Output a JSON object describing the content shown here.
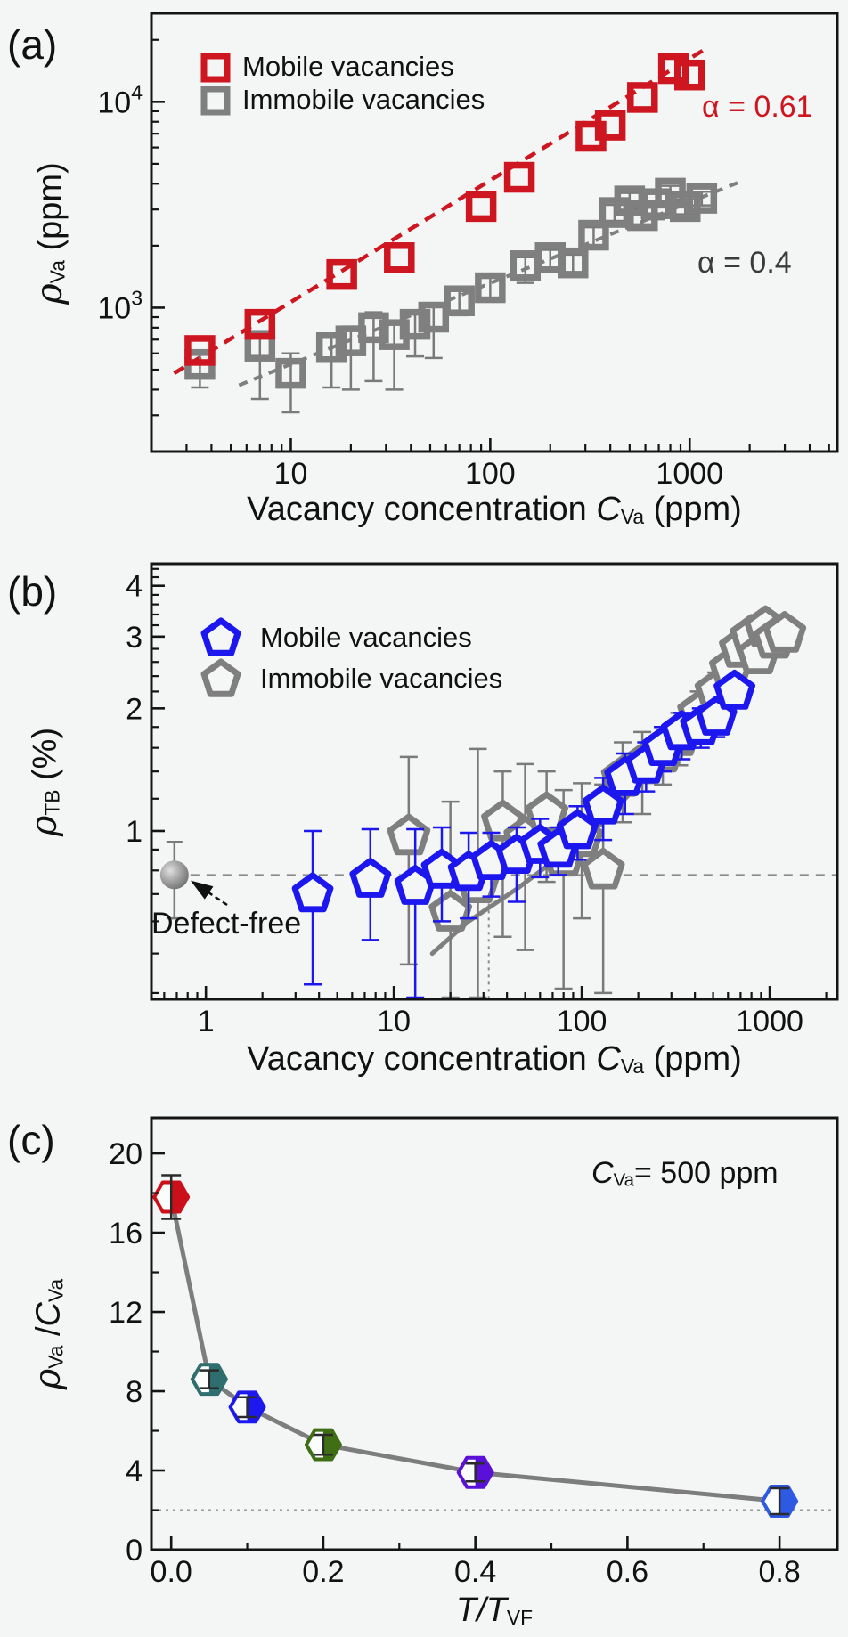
{
  "background": "#f3f6f5",
  "chart_data": [
    {
      "panel": "(a)",
      "type": "scatter",
      "legend_position": "top-left-inside",
      "legend": [
        {
          "label": "Mobile vacancies",
          "color": "#ce1620",
          "marker": "square"
        },
        {
          "label": "Immobile vacancies",
          "color": "#7f7f7f",
          "marker": "square"
        }
      ],
      "annotations": [
        {
          "text": "α = 0.61",
          "color": "#ce1620"
        },
        {
          "text": "α = 0.4",
          "color": "#3b3b3b"
        }
      ],
      "x_axis": {
        "scale": "log",
        "label_parts": [
          {
            "t": "Vacancy concentration "
          },
          {
            "t": "C",
            "s": "it"
          },
          {
            "t": "Va",
            "s": "sub"
          },
          {
            "t": " (ppm)"
          }
        ],
        "range": [
          2,
          5500
        ],
        "major_ticks": [
          10,
          100,
          1000
        ],
        "tick_labels": [
          "10",
          "100",
          "1000"
        ],
        "minor_ticks": [
          3,
          4,
          5,
          6,
          7,
          8,
          9,
          20,
          30,
          40,
          50,
          60,
          70,
          80,
          90,
          200,
          300,
          400,
          500,
          600,
          700,
          800,
          900,
          2000,
          3000,
          4000,
          5000
        ]
      },
      "y_axis": {
        "scale": "log",
        "label_parts": [
          {
            "t": "ρ",
            "s": "gi"
          },
          {
            "t": "Va",
            "s": "sub"
          },
          {
            "t": " (ppm)"
          }
        ],
        "range": [
          200,
          26900
        ],
        "major_ticks": [
          1000,
          10000
        ],
        "tick_labels": [
          {
            "b": "10",
            "s": "3"
          },
          {
            "b": "10",
            "s": "4"
          }
        ],
        "minor_ticks": [
          300,
          400,
          500,
          600,
          700,
          800,
          900,
          2000,
          3000,
          4000,
          5000,
          6000,
          7000,
          8000,
          9000,
          20000
        ]
      },
      "series": [
        {
          "name": "Immobile vacancies",
          "marker": "square",
          "color": "#7f7f7f",
          "points": [
            [
              3.5,
              530,
              120,
              60
            ],
            [
              7,
              650,
              290,
              80
            ],
            [
              10,
              480,
              170,
              120
            ],
            [
              16,
              640,
              230,
              90
            ],
            [
              20,
              690,
              290,
              120
            ],
            [
              26,
              800,
              360,
              150
            ],
            [
              33,
              740,
              340,
              110
            ],
            [
              42,
              830,
              250,
              130
            ],
            [
              52,
              900,
              330,
              140
            ],
            [
              70,
              1080,
              160,
              160
            ],
            [
              100,
              1250,
              160,
              160
            ],
            [
              150,
              1600,
              280,
              160
            ],
            [
              200,
              1750,
              200,
              160
            ],
            [
              260,
              1650,
              160,
              160
            ],
            [
              330,
              2250,
              260,
              210
            ],
            [
              420,
              2900,
              260,
              260
            ],
            [
              500,
              3300,
              310,
              310
            ],
            [
              580,
              2800,
              260,
              260
            ],
            [
              680,
              3200,
              510,
              410
            ],
            [
              800,
              3600,
              310,
              310
            ],
            [
              950,
              3100,
              260,
              260
            ],
            [
              1150,
              3400,
              260,
              260
            ]
          ]
        },
        {
          "name": "Mobile vacancies",
          "marker": "square",
          "color": "#ce1620",
          "points": [
            [
              3.5,
              620
            ],
            [
              7,
              830
            ],
            [
              18,
              1450
            ],
            [
              35,
              1750
            ],
            [
              90,
              3100
            ],
            [
              140,
              4300
            ],
            [
              320,
              6800
            ],
            [
              400,
              7700
            ],
            [
              580,
              10500
            ],
            [
              830,
              14500
            ],
            [
              1000,
              13500
            ]
          ]
        }
      ],
      "fit_lines": [
        {
          "color": "#7f7f7f",
          "dash": "10 8",
          "width": 4,
          "from": [
            5.5,
            420
          ],
          "to": [
            1800,
            4100
          ],
          "alpha": "0.4"
        },
        {
          "color": "#ce1620",
          "dash": "13 9",
          "width": 4.5,
          "from": [
            2.6,
            480
          ],
          "to": [
            1250,
            18500
          ],
          "alpha": "0.61"
        }
      ]
    },
    {
      "panel": "(b)",
      "type": "scatter",
      "legend": [
        {
          "label": "Mobile vacancies",
          "color": "#1c17ee",
          "marker": "pentagon"
        },
        {
          "label": "Immobile vacancies",
          "color": "#7f7f7f",
          "marker": "pentagon"
        }
      ],
      "x_axis": {
        "scale": "log",
        "label_parts": [
          {
            "t": "Vacancy concentration "
          },
          {
            "t": "C",
            "s": "it"
          },
          {
            "t": "Va",
            "s": "sub"
          },
          {
            "t": " (ppm)"
          }
        ],
        "range": [
          0.513,
          2290
        ],
        "major_ticks": [
          1,
          10,
          100,
          1000
        ],
        "tick_labels": [
          "1",
          "10",
          "100",
          "1000"
        ],
        "minor_ticks": [
          0.6,
          0.7,
          0.8,
          0.9,
          2,
          3,
          4,
          5,
          6,
          7,
          8,
          9,
          20,
          30,
          40,
          50,
          60,
          70,
          80,
          90,
          200,
          300,
          400,
          500,
          600,
          700,
          800,
          900,
          2000
        ]
      },
      "y_axis": {
        "scale": "log",
        "label_parts": [
          {
            "t": "ρ",
            "s": "gi"
          },
          {
            "t": "TB",
            "s": "sub"
          },
          {
            "t": " (%)"
          }
        ],
        "range": [
          0.386,
          4.53
        ],
        "major_ticks": [
          1,
          2,
          3,
          4
        ],
        "tick_labels": [
          "1",
          "2",
          "3",
          "4"
        ],
        "minor_ticks": [
          0.4,
          0.5,
          0.6,
          0.7,
          0.8,
          0.9,
          1.2,
          1.4,
          1.6,
          1.8,
          2.2,
          2.4,
          2.6,
          2.8,
          3.2,
          3.4,
          3.6,
          3.8,
          4.2,
          4.4
        ]
      },
      "reference_lines": [
        {
          "type": "h-dash",
          "y": 0.78
        },
        {
          "type": "v-dot",
          "x": 32
        }
      ],
      "defect_free": {
        "label": "Defect-free",
        "x": 0.68,
        "y": 0.78,
        "err_lo": 0.17,
        "err_hi": 0.16
      },
      "trend_curve": {
        "color": "#7f7f7f",
        "width": 5,
        "points": [
          [
            16,
            0.5
          ],
          [
            25,
            0.6
          ],
          [
            45,
            0.72
          ],
          [
            80,
            0.88
          ],
          [
            130,
            1.05
          ],
          [
            200,
            1.3
          ],
          [
            300,
            1.6
          ],
          [
            450,
            1.95
          ],
          [
            650,
            2.4
          ],
          [
            900,
            2.85
          ],
          [
            1300,
            3.15
          ]
        ]
      },
      "series": [
        {
          "name": "Immobile vacancies",
          "marker": "pentagon",
          "color": "#7f7f7f",
          "points": [
            [
              12,
              0.97,
              0.5,
              0.55
            ],
            [
              20,
              0.63,
              0.3,
              0.55
            ],
            [
              28,
              0.74,
              0.4,
              0.85
            ],
            [
              38,
              1.05,
              0.5,
              0.35
            ],
            [
              50,
              0.96,
              0.45,
              0.5
            ],
            [
              65,
              1.1,
              0.35,
              0.3
            ],
            [
              80,
              0.86,
              0.45,
              0.4
            ],
            [
              100,
              0.96,
              0.35,
              0.35
            ],
            [
              130,
              0.8,
              0.4,
              0.5
            ],
            [
              165,
              1.35,
              0.3,
              0.3
            ],
            [
              210,
              1.45,
              0.35,
              0.3
            ],
            [
              270,
              1.55,
              0.25,
              0.25
            ],
            [
              330,
              1.7,
              0.25,
              0.25
            ],
            [
              420,
              1.95,
              0.3,
              0.25
            ],
            [
              520,
              2.2,
              0.25,
              0.25
            ],
            [
              620,
              2.5,
              0.2,
              0.2
            ],
            [
              700,
              2.8,
              0.2,
              0.2
            ],
            [
              800,
              3.0,
              0.2,
              0.2
            ],
            [
              870,
              2.7,
              0.2,
              0.2
            ],
            [
              950,
              3.15,
              0.2,
              0.2
            ],
            [
              1060,
              2.95,
              0.2,
              0.2
            ],
            [
              1200,
              3.05,
              0.2,
              0.2
            ]
          ]
        },
        {
          "name": "Mobile vacancies",
          "marker": "pentagon",
          "color": "#1c17ee",
          "points": [
            [
              3.7,
              0.7,
              0.28,
              0.3
            ],
            [
              7.5,
              0.76,
              0.22,
              0.25
            ],
            [
              13,
              0.73,
              0.35,
              0.28
            ],
            [
              18,
              0.8,
              0.2,
              0.22
            ],
            [
              25,
              0.79,
              0.18,
              0.2
            ],
            [
              33,
              0.84,
              0.15,
              0.15
            ],
            [
              45,
              0.87,
              0.2,
              0.15
            ],
            [
              60,
              0.92,
              0.15,
              0.15
            ],
            [
              75,
              0.9,
              0.12,
              0.12
            ],
            [
              95,
              1.0,
              0.15,
              0.15
            ],
            [
              130,
              1.15,
              0.2,
              0.2
            ],
            [
              170,
              1.35,
              0.25,
              0.2
            ],
            [
              220,
              1.45,
              0.2,
              0.2
            ],
            [
              270,
              1.6,
              0.2,
              0.2
            ],
            [
              340,
              1.75,
              0.25,
              0.2
            ],
            [
              430,
              1.8,
              0.2,
              0.2
            ],
            [
              520,
              1.9,
              0.2,
              0.15
            ],
            [
              650,
              2.2,
              0.15,
              0.15
            ]
          ]
        }
      ]
    },
    {
      "panel": "(c)",
      "type": "scatter-line",
      "annotation_parts": [
        {
          "t": "C",
          "s": "it"
        },
        {
          "t": "Va",
          "s": "sub"
        },
        {
          "t": "= 500 ppm"
        }
      ],
      "x_axis": {
        "scale": "linear",
        "label_parts": [
          {
            "t": "T",
            "s": "it"
          },
          {
            "t": "/",
            "s": "it"
          },
          {
            "t": "T",
            "s": "it"
          },
          {
            "t": "VF",
            "s": "sub"
          }
        ],
        "range": [
          -0.026,
          0.876
        ],
        "major_ticks": [
          0,
          0.2,
          0.4,
          0.6,
          0.8
        ],
        "tick_labels": [
          "0.0",
          "0.2",
          "0.4",
          "0.6",
          "0.8"
        ],
        "minor_ticks": [
          0.1,
          0.3,
          0.5,
          0.7
        ]
      },
      "y_axis": {
        "scale": "linear",
        "label_parts": [
          {
            "t": "ρ",
            "s": "gi"
          },
          {
            "t": "Va",
            "s": "sub"
          },
          {
            "t": " /"
          },
          {
            "t": "C",
            "s": "it"
          },
          {
            "t": "Va",
            "s": "sub"
          }
        ],
        "range": [
          0,
          21.8
        ],
        "major_ticks": [
          0,
          4,
          8,
          12,
          16,
          20
        ],
        "tick_labels": [
          "0",
          "4",
          "8",
          "12",
          "16",
          "20"
        ],
        "minor_ticks": [
          2,
          6,
          10,
          14,
          18
        ]
      },
      "dotted_line_y": 2.0,
      "line_color": "#7d7d7d",
      "points": [
        {
          "x": 0.0,
          "y": 17.8,
          "err": 1.1,
          "color": "#cb1019"
        },
        {
          "x": 0.05,
          "y": 8.6,
          "err": 0.45,
          "color": "#2e6e6e"
        },
        {
          "x": 0.1,
          "y": 7.2,
          "err": 0.5,
          "color": "#1c18ee"
        },
        {
          "x": 0.2,
          "y": 5.3,
          "err": 0.5,
          "color": "#3f6e15"
        },
        {
          "x": 0.4,
          "y": 3.9,
          "err": 0.45,
          "color": "#5b10d9"
        },
        {
          "x": 0.8,
          "y": 2.45,
          "err": 0.65,
          "color": "#2e59e3"
        }
      ]
    }
  ]
}
